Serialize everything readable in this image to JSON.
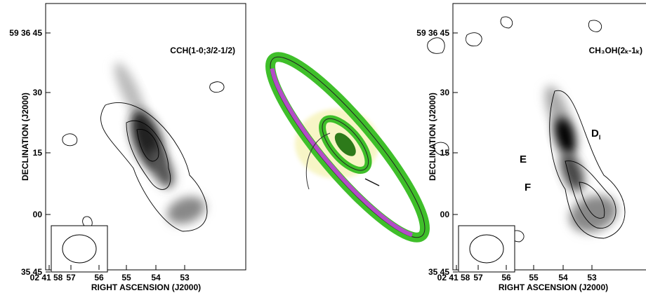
{
  "panels": [
    {
      "title": "CCH(1-0;3/2-1/2)",
      "y_label": "DECLINATION (J2000)",
      "x_label": "RIGHT ASCENSION (J2000)",
      "y_ticks": [
        "59 36 45",
        "30",
        "15",
        "00",
        "35 45"
      ],
      "x_ticks": [
        "02 41 58",
        "57",
        "56",
        "55",
        "54",
        "53"
      ],
      "annotations": []
    },
    {
      "title": "CH₃OH(2ₖ-1ₖ)",
      "y_label": "DECLINATION (J2000)",
      "x_label": "RIGHT ASCENSION (J2000)",
      "y_ticks": [
        "59 36 45",
        "30",
        "15",
        "00",
        "35 45"
      ],
      "x_ticks": [
        "02 41 58",
        "57",
        "56",
        "55",
        "54",
        "53"
      ],
      "annotations": [
        {
          "text": "D",
          "sub": "I"
        },
        {
          "text": "E",
          "sub": ""
        },
        {
          "text": "F",
          "sub": ""
        }
      ]
    }
  ]
}
